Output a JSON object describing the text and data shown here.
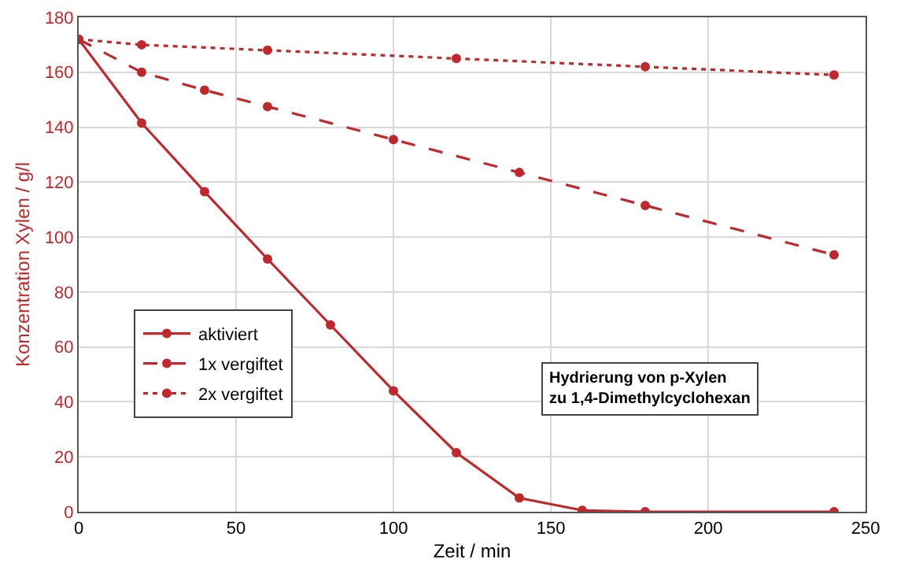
{
  "chart_data": {
    "type": "line",
    "xlabel": "Zeit / min",
    "ylabel": "Konzentration Xylen / g/l",
    "xlim": [
      0,
      250
    ],
    "xticks": [
      0,
      50,
      100,
      150,
      200,
      250
    ],
    "ylim": [
      0,
      180
    ],
    "yticks": [
      0,
      20,
      40,
      60,
      80,
      100,
      120,
      140,
      160,
      180
    ],
    "grid": true,
    "legend": "left",
    "marker": "circle",
    "annotations": [
      "Hydrierung von p-Xylen\nzu 1,4-Dimethylcyclohexan"
    ],
    "series": [
      {
        "name": "aktiviert",
        "color": "#c0282d",
        "line_style": "solid",
        "x": [
          0,
          20,
          40,
          60,
          80,
          100,
          120,
          140,
          160,
          180,
          240
        ],
        "values": [
          172,
          141.5,
          116.5,
          92,
          68,
          44,
          21.5,
          5,
          0.5,
          0,
          0
        ]
      },
      {
        "name": "1x vergiftet",
        "color": "#c0282d",
        "line_style": "dashed",
        "x": [
          0,
          20,
          40,
          60,
          100,
          140,
          180,
          240
        ],
        "values": [
          172,
          160,
          153.5,
          147.5,
          135.5,
          123.5,
          111.5,
          93.5
        ]
      },
      {
        "name": "2x vergiftet",
        "color": "#c0282d",
        "line_style": "dotted",
        "x": [
          0,
          20,
          60,
          120,
          180,
          240
        ],
        "values": [
          172,
          170,
          168,
          165,
          162,
          159
        ]
      }
    ]
  }
}
